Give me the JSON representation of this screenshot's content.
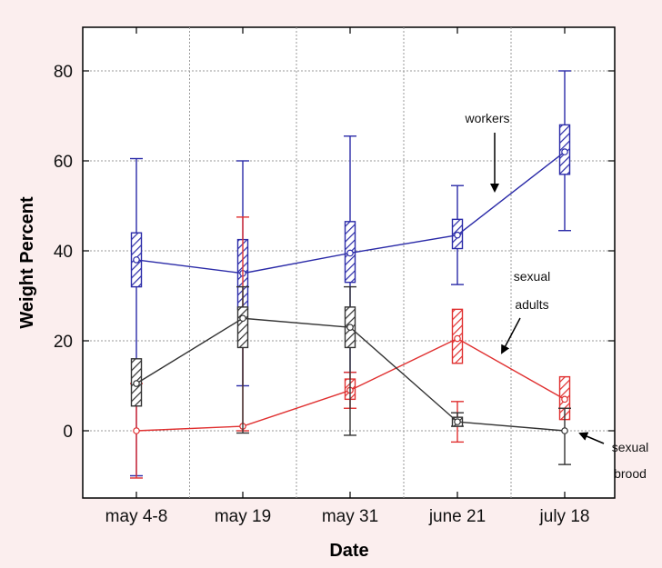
{
  "chart_data": {
    "type": "line",
    "title": "",
    "xlabel": "Date",
    "ylabel": "Weight Percent",
    "categories": [
      "may 4-8",
      "may 19",
      "may 31",
      "june 21",
      "july 18"
    ],
    "ylim": [
      -15,
      90
    ],
    "yticks": [
      0,
      20,
      40,
      60,
      80
    ],
    "grid": true,
    "series": [
      {
        "name": "workers",
        "color": "#2b2ba8",
        "values": [
          38,
          35,
          39.5,
          43.5,
          62
        ],
        "box_low": [
          32,
          27,
          33,
          40.5,
          57
        ],
        "box_high": [
          44,
          42.5,
          46.5,
          47,
          68
        ],
        "whisker_low": [
          -10,
          10,
          13,
          32.5,
          44.5
        ],
        "whisker_high": [
          60.5,
          60,
          65.5,
          54.5,
          80
        ]
      },
      {
        "name": "sexual adults",
        "color": "#e03030",
        "values": [
          0,
          1,
          9,
          20.5,
          7
        ],
        "box_low": [
          0,
          1,
          7,
          15,
          2.5
        ],
        "box_high": [
          0,
          1,
          11.5,
          27,
          12
        ],
        "whisker_low": [
          -10.5,
          0,
          5,
          -2.5,
          null
        ],
        "whisker_high": [
          10.5,
          47.5,
          13,
          6.5,
          null
        ]
      },
      {
        "name": "sexual brood",
        "color": "#333333",
        "values": [
          10.5,
          25,
          23,
          2,
          0
        ],
        "box_low": [
          5.5,
          18.5,
          18.5,
          1,
          0
        ],
        "box_high": [
          16,
          27.5,
          27.5,
          3,
          0
        ],
        "whisker_low": [
          null,
          -0.5,
          -1,
          1,
          -7.5
        ],
        "whisker_high": [
          null,
          32,
          32,
          4,
          5
        ]
      }
    ],
    "annotations": [
      {
        "lines": [
          "workers"
        ]
      },
      {
        "lines": [
          "sexual",
          "adults"
        ]
      },
      {
        "lines": [
          "sexual",
          "brood"
        ]
      }
    ]
  }
}
